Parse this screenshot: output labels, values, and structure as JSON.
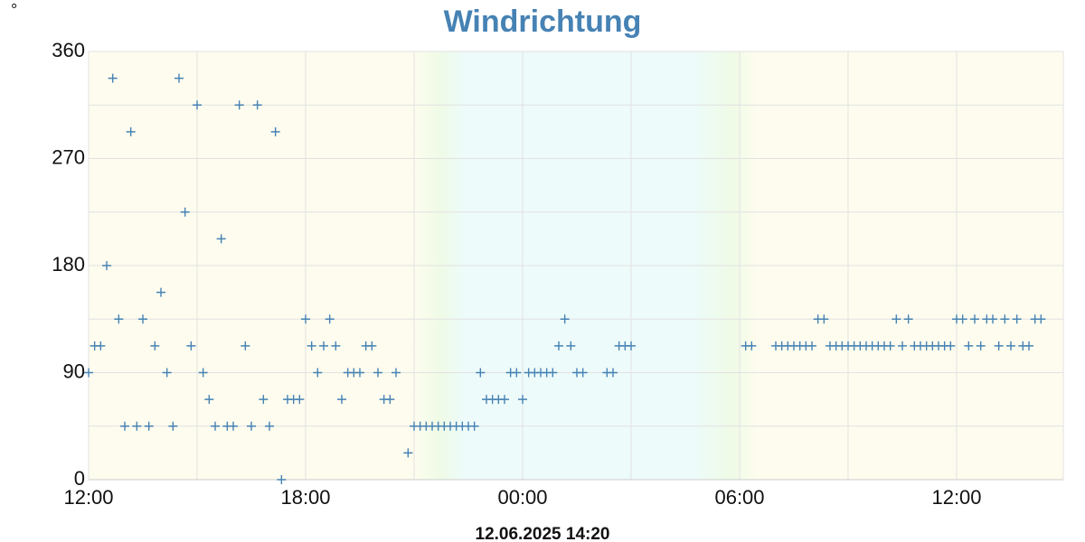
{
  "chart_data": {
    "type": "scatter",
    "title": "Windrichtung",
    "y_label": "°",
    "timestamp": "12.06.2025 14:20",
    "color": "#4682b4",
    "grid": true,
    "xlim": [
      0,
      1617
    ],
    "ylim": [
      0,
      360
    ],
    "xticks": [
      {
        "value": 0,
        "label": "12:00"
      },
      {
        "value": 360,
        "label": "18:00"
      },
      {
        "value": 720,
        "label": "00:00"
      },
      {
        "value": 1080,
        "label": "06:00"
      },
      {
        "value": 1440,
        "label": "12:00"
      }
    ],
    "xminorticks": [
      180,
      540,
      900,
      1260
    ],
    "yticks": [
      0,
      90,
      180,
      270,
      360
    ],
    "yminorticks": [
      45,
      135,
      225,
      315
    ],
    "x": [
      0,
      10,
      20,
      30,
      40,
      50,
      60,
      70,
      80,
      90,
      100,
      110,
      120,
      130,
      140,
      150,
      160,
      170,
      180,
      190,
      200,
      210,
      220,
      230,
      240,
      250,
      260,
      270,
      280,
      290,
      300,
      310,
      320,
      330,
      340,
      350,
      360,
      370,
      380,
      390,
      400,
      410,
      420,
      430,
      440,
      450,
      460,
      470,
      480,
      490,
      500,
      510,
      530,
      540,
      550,
      560,
      570,
      580,
      590,
      600,
      610,
      620,
      630,
      640,
      650,
      660,
      670,
      680,
      690,
      700,
      710,
      720,
      730,
      740,
      750,
      760,
      770,
      780,
      790,
      800,
      810,
      820,
      860,
      870,
      880,
      890,
      900,
      1090,
      1100,
      1140,
      1150,
      1160,
      1170,
      1180,
      1190,
      1200,
      1210,
      1220,
      1230,
      1240,
      1250,
      1260,
      1270,
      1280,
      1290,
      1300,
      1310,
      1320,
      1330,
      1340,
      1350,
      1360,
      1370,
      1380,
      1390,
      1400,
      1410,
      1420,
      1430,
      1440,
      1450,
      1460,
      1470,
      1480,
      1490,
      1500,
      1510,
      1520,
      1530,
      1540,
      1550,
      1560,
      1570,
      1580
    ],
    "values": [
      90,
      112.5,
      112.5,
      180,
      337.5,
      135,
      45,
      292.5,
      45,
      135,
      45,
      112.5,
      157.5,
      90,
      45,
      337.5,
      225,
      112.5,
      315,
      90,
      67.5,
      45,
      202.5,
      45,
      45,
      315,
      112.5,
      45,
      315,
      67.5,
      45,
      292.5,
      0,
      67.5,
      67.5,
      67.5,
      135,
      112.5,
      90,
      112.5,
      135,
      112.5,
      67.5,
      90,
      90,
      90,
      112.5,
      112.5,
      90,
      67.5,
      67.5,
      90,
      22.5,
      45,
      45,
      45,
      45,
      45,
      45,
      45,
      45,
      45,
      45,
      45,
      90,
      67.5,
      67.5,
      67.5,
      67.5,
      90,
      90,
      67.5,
      90,
      90,
      90,
      90,
      90,
      112.5,
      135,
      112.5,
      90,
      90,
      90,
      90,
      112.5,
      112.5,
      112.5,
      112.5,
      112.5,
      112.5,
      112.5,
      112.5,
      112.5,
      112.5,
      112.5,
      112.5,
      135,
      135,
      112.5,
      112.5,
      112.5,
      112.5,
      112.5,
      112.5,
      112.5,
      112.5,
      112.5,
      112.5,
      112.5,
      135,
      112.5,
      135,
      112.5,
      112.5,
      112.5,
      112.5,
      112.5,
      112.5,
      112.5,
      135,
      135,
      112.5,
      135,
      112.5,
      135,
      135,
      112.5,
      135,
      112.5,
      135,
      112.5,
      112.5,
      135,
      135
    ]
  }
}
